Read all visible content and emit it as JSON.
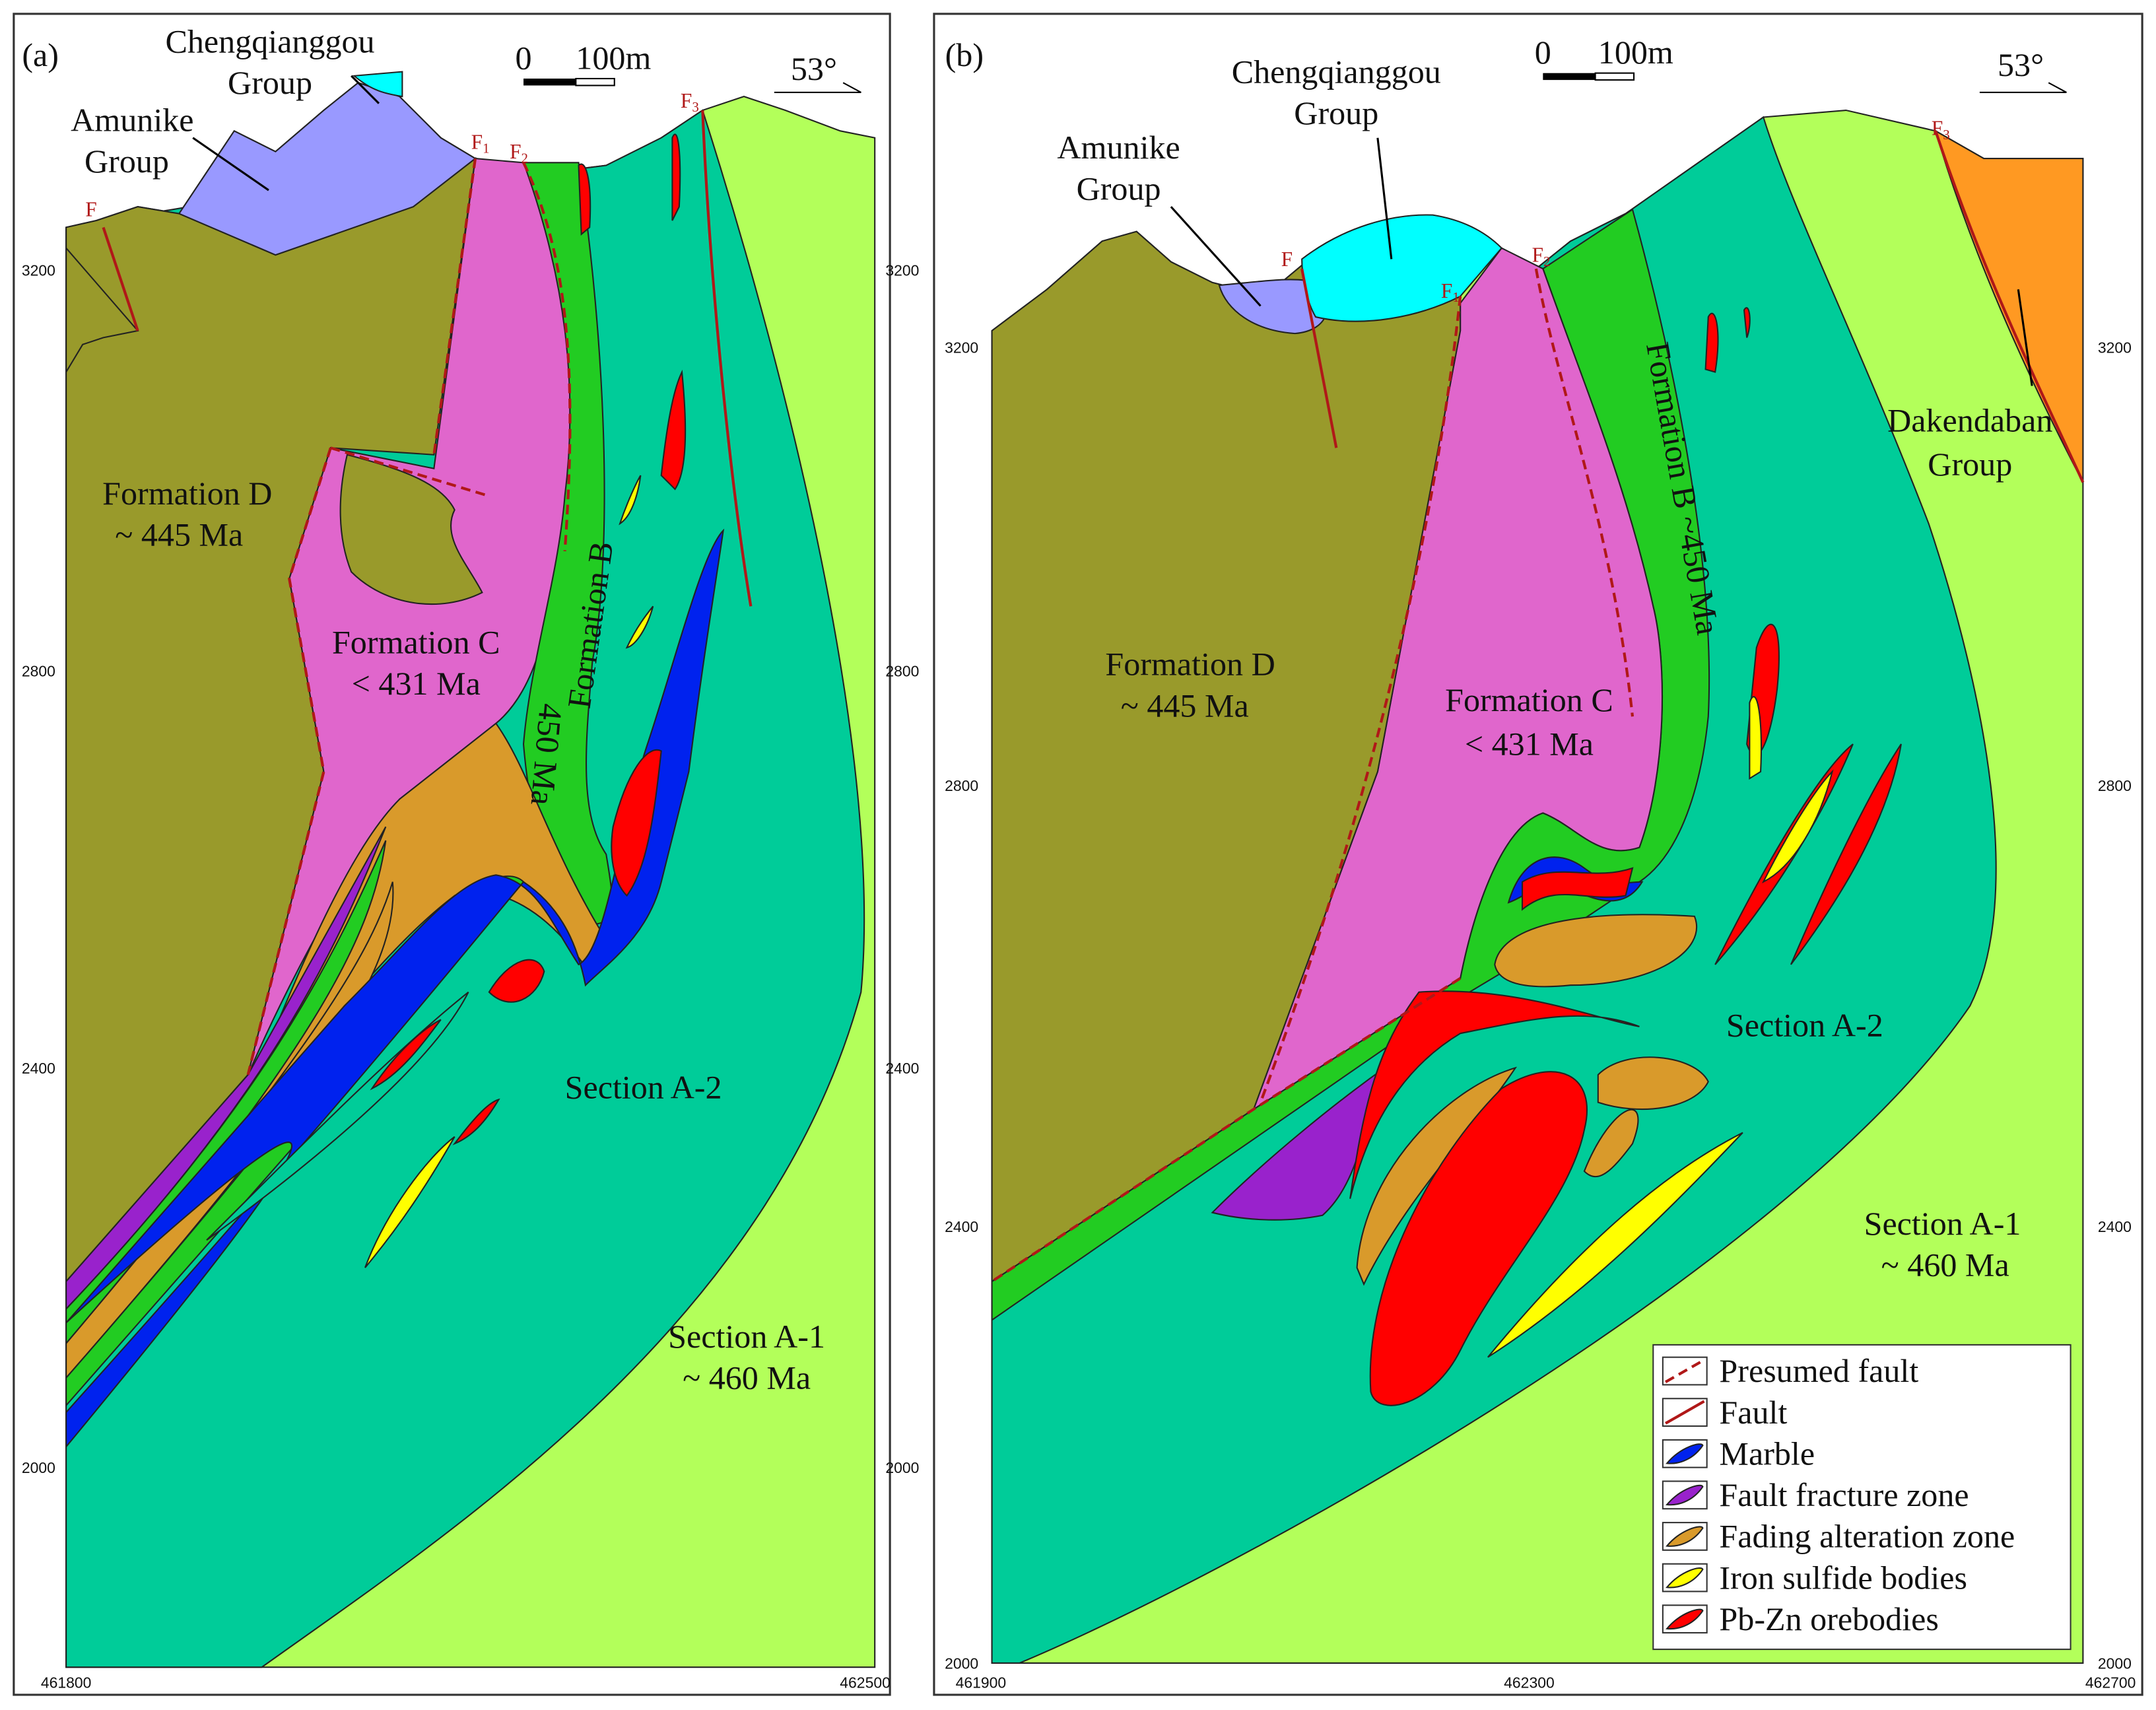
{
  "panels": [
    {
      "label": "(a)",
      "chengqianggou": [
        "Chengqianggou",
        "Group"
      ],
      "amunike": [
        "Amunike",
        "Group"
      ],
      "faults": {
        "f": "F",
        "f1": [
          "F",
          "1"
        ],
        "f2": [
          "F",
          "2"
        ],
        "f3": [
          "F",
          "3"
        ]
      },
      "scale": [
        "0",
        "100m"
      ],
      "bearing": "53°",
      "formation_d": [
        "Formation D",
        "~ 445 Ma"
      ],
      "formation_c": [
        "Formation C",
        "< 431 Ma"
      ],
      "formation_b": "Formation B",
      "formation_b_age": "450 Ma",
      "section_a2": "Section A-2",
      "section_a1": [
        "Section A-1",
        "~ 460 Ma"
      ],
      "y_ticks_left": [
        "3200",
        "2800",
        "2400",
        "2000"
      ],
      "y_ticks_right": [
        "3200",
        "2800",
        "2400",
        "2000"
      ],
      "x_ticks": [
        "461800",
        "462500"
      ]
    },
    {
      "label": "(b)",
      "chengqianggou": [
        "Chengqianggou",
        "Group"
      ],
      "amunike": [
        "Amunike",
        "Group"
      ],
      "faults": {
        "f": "F",
        "f1": [
          "F",
          "1"
        ],
        "f2": [
          "F",
          "2"
        ],
        "f3": [
          "F",
          "3"
        ]
      },
      "scale": [
        "0",
        "100m"
      ],
      "bearing": "53°",
      "dakendaban": [
        "Dakendaban",
        "Group"
      ],
      "formation_d": [
        "Formation D",
        "~ 445 Ma"
      ],
      "formation_c": [
        "Formation C",
        "< 431 Ma"
      ],
      "formation_b": "Formation B ~450 Ma",
      "section_a2": "Section A-2",
      "section_a1": [
        "Section A-1",
        "~ 460 Ma"
      ],
      "y_ticks_left": [
        "3200",
        "2800",
        "2400",
        "2000"
      ],
      "y_ticks_right": [
        "3200",
        "2800",
        "2400",
        "2000"
      ],
      "x_ticks": [
        "461900",
        "462300",
        "462700"
      ]
    }
  ],
  "legend": [
    "Presumed fault",
    "Fault",
    "Marble",
    "Fault fracture zone",
    "Fading alteration zone",
    "Iron sulfide bodies",
    "Pb-Zn orebodies"
  ]
}
